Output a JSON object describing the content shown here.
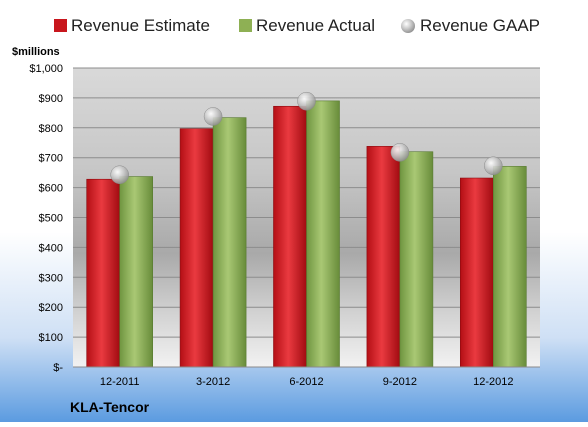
{
  "chart_data": {
    "type": "bar",
    "title": "",
    "company": "KLA-Tencor",
    "ylabel": "$millions",
    "ylim": [
      0,
      1000
    ],
    "yticks": [
      0,
      100,
      200,
      300,
      400,
      500,
      600,
      700,
      800,
      900,
      1000
    ],
    "ytick_labels": [
      "$-",
      "$100",
      "$200",
      "$300",
      "$400",
      "$500",
      "$600",
      "$700",
      "$800",
      "$900",
      "$1,000"
    ],
    "categories": [
      "12-2011",
      "3-2012",
      "6-2012",
      "9-2012",
      "12-2012"
    ],
    "series": [
      {
        "name": "Revenue Estimate",
        "kind": "bar",
        "color": "#c8161d",
        "values": [
          628,
          797,
          872,
          738,
          632
        ]
      },
      {
        "name": "Revenue Actual",
        "kind": "bar",
        "color": "#8eb054",
        "values": [
          637,
          834,
          890,
          720,
          671
        ]
      },
      {
        "name": "Revenue GAAP",
        "kind": "marker",
        "color": "#b8b8b8",
        "values": [
          643,
          838,
          889,
          718,
          673
        ]
      }
    ],
    "legend_position": "top",
    "grid": true
  }
}
